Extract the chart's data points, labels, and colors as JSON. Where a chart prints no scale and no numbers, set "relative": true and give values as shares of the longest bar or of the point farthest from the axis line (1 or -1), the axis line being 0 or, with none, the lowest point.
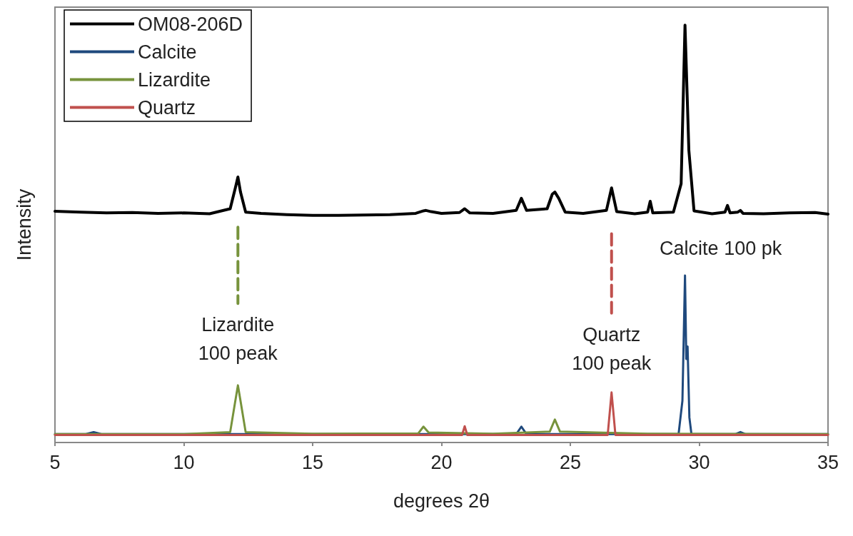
{
  "chart_data": {
    "type": "line",
    "relative": true,
    "xlabel": "degrees 2θ",
    "ylabel": "Intensity",
    "xlim": [
      5,
      35
    ],
    "xticks": [
      5,
      10,
      15,
      20,
      25,
      30,
      35
    ],
    "grid": false,
    "legend": "top left",
    "marker": "none",
    "line_style": "solid",
    "series": [
      {
        "name": "OM08-206D",
        "color": "#000000",
        "x": [
          5,
          6,
          7,
          8,
          9,
          10,
          11,
          11.8,
          12.0,
          12.1,
          12.2,
          12.4,
          13,
          14,
          15,
          16,
          17,
          18,
          19,
          19.3,
          19.4,
          19.6,
          20,
          20.7,
          20.9,
          21.1,
          22,
          22.9,
          23.1,
          23.3,
          24.1,
          24.3,
          24.4,
          24.55,
          24.8,
          25.5,
          26.4,
          26.6,
          26.8,
          27.5,
          28.0,
          28.1,
          28.2,
          29.0,
          29.3,
          29.45,
          29.6,
          29.8,
          30.5,
          31.0,
          31.1,
          31.2,
          31.5,
          31.6,
          31.7,
          32.5,
          33.5,
          34.5,
          35
        ],
        "values": [
          0.554,
          0.552,
          0.55,
          0.551,
          0.549,
          0.55,
          0.548,
          0.56,
          0.61,
          0.636,
          0.6,
          0.552,
          0.549,
          0.546,
          0.544,
          0.544,
          0.545,
          0.546,
          0.549,
          0.555,
          0.556,
          0.553,
          0.549,
          0.551,
          0.56,
          0.55,
          0.549,
          0.556,
          0.585,
          0.556,
          0.56,
          0.595,
          0.6,
          0.585,
          0.552,
          0.549,
          0.556,
          0.61,
          0.553,
          0.548,
          0.552,
          0.578,
          0.55,
          0.552,
          0.62,
          1.0,
          0.7,
          0.555,
          0.548,
          0.552,
          0.568,
          0.55,
          0.552,
          0.556,
          0.549,
          0.548,
          0.55,
          0.551,
          0.547
        ]
      },
      {
        "name": "Calcite",
        "color": "#1f497d",
        "x": [
          5,
          6.2,
          6.5,
          6.8,
          10,
          20,
          22.9,
          23.1,
          23.3,
          29.2,
          29.35,
          29.45,
          29.5,
          29.55,
          29.62,
          29.7,
          31.4,
          31.6,
          31.8,
          35
        ],
        "values": [
          0.02,
          0.02,
          0.025,
          0.02,
          0.02,
          0.02,
          0.02,
          0.038,
          0.02,
          0.02,
          0.1,
          0.4,
          0.2,
          0.23,
          0.06,
          0.02,
          0.02,
          0.025,
          0.02,
          0.02
        ]
      },
      {
        "name": "Lizardite",
        "color": "#77933c",
        "x": [
          5,
          10,
          11.8,
          12.0,
          12.1,
          12.2,
          12.4,
          15,
          19.1,
          19.3,
          19.5,
          22,
          24.2,
          24.4,
          24.6,
          28,
          35
        ],
        "values": [
          0.02,
          0.02,
          0.025,
          0.1,
          0.137,
          0.1,
          0.025,
          0.021,
          0.022,
          0.038,
          0.024,
          0.021,
          0.026,
          0.055,
          0.026,
          0.021,
          0.02
        ]
      },
      {
        "name": "Quartz",
        "color": "#c0504d",
        "x": [
          5,
          15,
          20.8,
          20.9,
          21.0,
          25,
          26.45,
          26.6,
          26.75,
          30,
          35
        ],
        "values": [
          0.018,
          0.018,
          0.018,
          0.039,
          0.018,
          0.018,
          0.018,
          0.12,
          0.018,
          0.018,
          0.018
        ]
      },
      {
        "color": "#77933c",
        "line_style": "dashed",
        "x": [
          12.1,
          12.1
        ],
        "values": [
          0.516,
          0.333
        ]
      },
      {
        "color": "#c0504d",
        "line_style": "dashed",
        "x": [
          26.6,
          26.6
        ],
        "values": [
          0.5,
          0.31
        ]
      }
    ],
    "annotations": [
      {
        "text": "Lizardite\n100 peak",
        "x": 12.1,
        "y": 0.333
      },
      {
        "text": "Quartz\n100 peak",
        "x": 26.6,
        "y": 0.31
      },
      {
        "text": "Calcite 100 pk",
        "x": 29.45,
        "y": 0.4
      }
    ]
  }
}
